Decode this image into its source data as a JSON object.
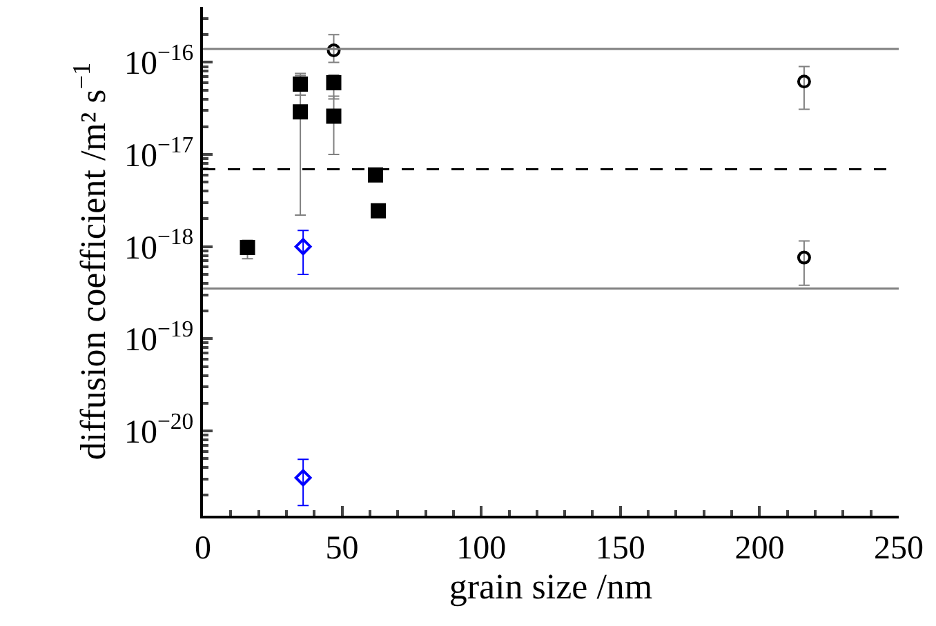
{
  "chart_data": {
    "type": "scatter",
    "xlabel": "grain size /nm",
    "ylabel": "diffusion coefficient /m² s$^{−1}$",
    "log": "y",
    "xlim": [
      0,
      250
    ],
    "xticks": [
      0,
      50,
      100,
      150,
      200,
      250
    ],
    "ylim": [
      1.2e-21,
      4e-16
    ],
    "yticks": [
      {
        "value": 1e-16,
        "label": "10$^{−16}$"
      },
      {
        "value": 1e-17,
        "label": "10$^{−17}$"
      },
      {
        "value": 1e-18,
        "label": "10$^{−18}$"
      },
      {
        "value": 1e-19,
        "label": "10$^{−19}$"
      },
      {
        "value": 1e-20,
        "label": "10$^{−20}$"
      }
    ],
    "series": [
      {
        "color": "#000000",
        "marker": "square",
        "x": [
          16,
          35,
          35,
          47,
          47,
          62,
          63
        ],
        "values": [
          9.8e-19,
          5.8e-17,
          2.9e-17,
          6e-17,
          2.6e-17,
          6e-18,
          2.45e-18
        ],
        "errors": [
          [
            7.4e-19,
            1.17e-18
          ],
          [
            4.4e-17,
            7.6e-17
          ],
          [
            2.2e-18,
            7.2e-17
          ],
          [
            4e-17,
            7.3e-17
          ],
          [
            1e-17,
            4.3e-17
          ],
          null,
          null
        ]
      },
      {
        "color": "#000000",
        "marker": "circle",
        "x": [
          47,
          216,
          216
        ],
        "values": [
          1.35e-16,
          6.2e-17,
          7.6e-19
        ],
        "errors": [
          [
            1e-16,
            2e-16
          ],
          [
            3.1e-17,
            9e-17
          ],
          [
            3.8e-19,
            1.15e-18
          ]
        ]
      },
      {
        "color": "#0000ff",
        "marker": "diamond",
        "x": [
          36,
          36
        ],
        "values": [
          1e-18,
          3.1e-21
        ],
        "errors": [
          [
            5e-19,
            1.5e-18
          ],
          [
            1.55e-21,
            4.9e-21
          ]
        ]
      }
    ],
    "ref_lines": [
      {
        "axis": "y",
        "value": 1.4e-16,
        "color": "#808080",
        "line_style": "solid"
      },
      {
        "axis": "y",
        "value": 6.9e-18,
        "color": "#000000",
        "line_style": "dashed"
      },
      {
        "axis": "y",
        "value": 3.5e-19,
        "color": "#808080",
        "line_style": "solid"
      }
    ]
  }
}
